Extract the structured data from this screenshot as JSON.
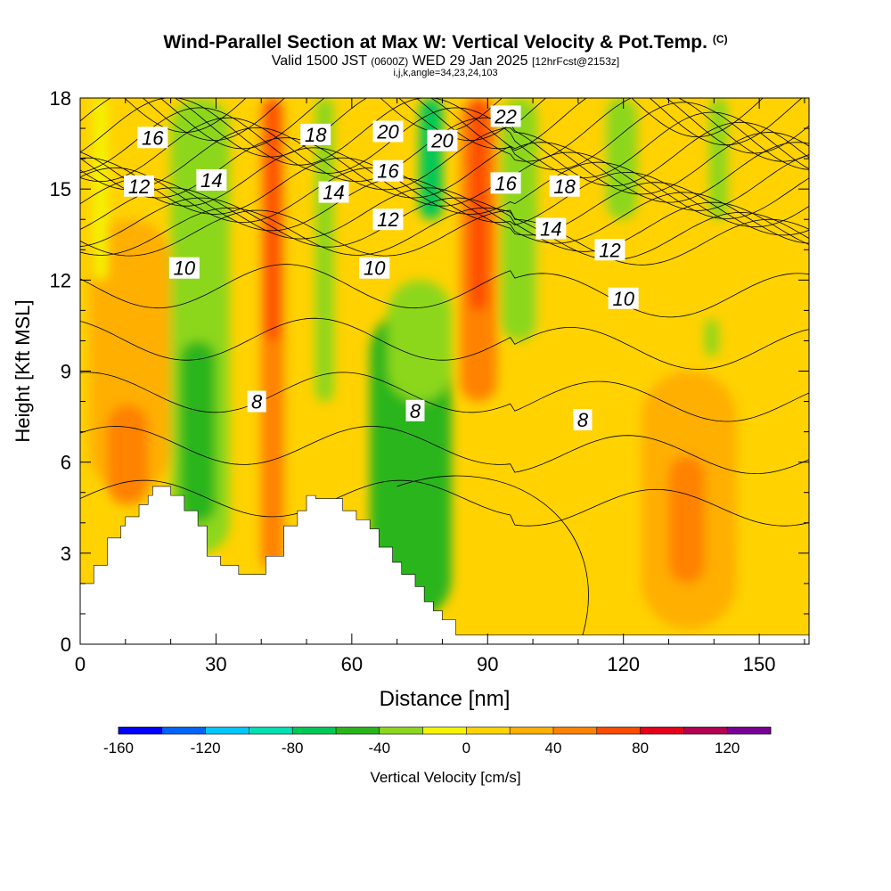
{
  "header": {
    "title": "Wind-Parallel Section at Max W: Vertical Velocity & Pot.Temp.",
    "title_tag": "(C)",
    "subtitle_a": "Valid 1500 JST",
    "subtitle_b": "(0600Z)",
    "subtitle_c": "WED 29 Jan 2025",
    "subtitle_d": "[12hrFcst@2153z]",
    "params": "i,j,k,angle=34,23,24,103"
  },
  "chart_data": {
    "type": "heatmap",
    "xlabel": "Distance [nm]",
    "ylabel": "Height [Kft MSL]",
    "xlim": [
      0,
      161
    ],
    "ylim": [
      0,
      18
    ],
    "xticks": [
      0,
      30,
      60,
      90,
      120,
      150
    ],
    "yticks": [
      0,
      3,
      6,
      9,
      12,
      15,
      18
    ],
    "terrain_top_kft": [
      [
        0,
        2
      ],
      [
        3,
        2
      ],
      [
        3,
        2.6
      ],
      [
        6,
        2.6
      ],
      [
        6,
        3.5
      ],
      [
        9,
        3.5
      ],
      [
        9,
        3.9
      ],
      [
        10,
        3.9
      ],
      [
        10,
        4.2
      ],
      [
        13,
        4.2
      ],
      [
        13,
        4.6
      ],
      [
        15,
        4.6
      ],
      [
        15,
        4.9
      ],
      [
        16,
        4.9
      ],
      [
        16,
        5.2
      ],
      [
        20,
        5.2
      ],
      [
        20,
        4.9
      ],
      [
        23,
        4.9
      ],
      [
        23,
        4.4
      ],
      [
        26,
        4.4
      ],
      [
        26,
        3.9
      ],
      [
        28,
        3.9
      ],
      [
        28,
        2.9
      ],
      [
        31,
        2.9
      ],
      [
        31,
        2.6
      ],
      [
        35,
        2.6
      ],
      [
        35,
        2.3
      ],
      [
        41,
        2.3
      ],
      [
        41,
        2.9
      ],
      [
        45,
        2.9
      ],
      [
        45,
        3.9
      ],
      [
        48,
        3.9
      ],
      [
        48,
        4.4
      ],
      [
        50,
        4.4
      ],
      [
        50,
        4.9
      ],
      [
        52,
        4.9
      ],
      [
        52,
        4.8
      ],
      [
        58,
        4.8
      ],
      [
        58,
        4.4
      ],
      [
        61,
        4.4
      ],
      [
        61,
        4.1
      ],
      [
        64,
        4.1
      ],
      [
        64,
        3.8
      ],
      [
        66,
        3.8
      ],
      [
        66,
        3.2
      ],
      [
        69,
        3.2
      ],
      [
        69,
        2.7
      ],
      [
        71,
        2.7
      ],
      [
        71,
        2.3
      ],
      [
        74,
        2.3
      ],
      [
        74,
        1.9
      ],
      [
        76,
        1.9
      ],
      [
        76,
        1.4
      ],
      [
        78,
        1.4
      ],
      [
        78,
        1.1
      ],
      [
        80,
        1.1
      ],
      [
        80,
        0.8
      ],
      [
        83,
        0.8
      ],
      [
        83,
        0.3
      ],
      [
        161,
        0.3
      ]
    ],
    "vertical_velocity_regions": [
      {
        "x": [
          0,
          4
        ],
        "y": [
          0,
          18
        ],
        "value": 10
      },
      {
        "x": [
          2,
          20
        ],
        "y": [
          5,
          14
        ],
        "value": 30
      },
      {
        "x": [
          6,
          15
        ],
        "y": [
          4.6,
          7.9
        ],
        "value": 50
      },
      {
        "x": [
          3,
          6
        ],
        "y": [
          12,
          18
        ],
        "value": -20
      },
      {
        "x": [
          20,
          33
        ],
        "y": [
          3,
          18
        ],
        "value": -40
      },
      {
        "x": [
          22,
          30
        ],
        "y": [
          4,
          10
        ],
        "value": -60
      },
      {
        "x": [
          40,
          45
        ],
        "y": [
          2.5,
          18
        ],
        "value": 50
      },
      {
        "x": [
          41,
          44
        ],
        "y": [
          10,
          18
        ],
        "value": 70
      },
      {
        "x": [
          52,
          56
        ],
        "y": [
          8,
          18
        ],
        "value": -40
      },
      {
        "x": [
          64,
          82
        ],
        "y": [
          0.8,
          11
        ],
        "value": -60
      },
      {
        "x": [
          68,
          82
        ],
        "y": [
          8,
          12
        ],
        "value": -40
      },
      {
        "x": [
          75,
          80
        ],
        "y": [
          14,
          18
        ],
        "value": -70
      },
      {
        "x": [
          84,
          92
        ],
        "y": [
          8,
          18
        ],
        "value": 50
      },
      {
        "x": [
          86,
          90
        ],
        "y": [
          11,
          18
        ],
        "value": 70
      },
      {
        "x": [
          93,
          101
        ],
        "y": [
          10,
          18
        ],
        "value": -40
      },
      {
        "x": [
          101,
          106
        ],
        "y": [
          0.3,
          14
        ],
        "value": 10
      },
      {
        "x": [
          108,
          116
        ],
        "y": [
          8,
          18
        ],
        "value": 10
      },
      {
        "x": [
          116,
          123
        ],
        "y": [
          14,
          18
        ],
        "value": -30
      },
      {
        "x": [
          124,
          145
        ],
        "y": [
          0.5,
          9
        ],
        "value": 30
      },
      {
        "x": [
          130,
          138
        ],
        "y": [
          2,
          6.2
        ],
        "value": 50
      },
      {
        "x": [
          138,
          141
        ],
        "y": [
          9.5,
          10.7
        ],
        "value": -30
      },
      {
        "x": [
          139,
          143
        ],
        "y": [
          14,
          18
        ],
        "value": -30
      },
      {
        "x": [
          146,
          154
        ],
        "y": [
          3,
          15
        ],
        "value": 10
      }
    ],
    "potential_temperature_labels": [
      {
        "text": "16",
        "x": 16,
        "y": 16.7
      },
      {
        "text": "12",
        "x": 13,
        "y": 15.1
      },
      {
        "text": "14",
        "x": 29,
        "y": 15.3
      },
      {
        "text": "18",
        "x": 52,
        "y": 16.8
      },
      {
        "text": "20",
        "x": 68,
        "y": 16.9
      },
      {
        "text": "20",
        "x": 80,
        "y": 16.6
      },
      {
        "text": "22",
        "x": 94,
        "y": 17.4
      },
      {
        "text": "16",
        "x": 68,
        "y": 15.6
      },
      {
        "text": "14",
        "x": 56,
        "y": 14.9
      },
      {
        "text": "16",
        "x": 94,
        "y": 15.2
      },
      {
        "text": "18",
        "x": 107,
        "y": 15.1
      },
      {
        "text": "12",
        "x": 68,
        "y": 14.0
      },
      {
        "text": "14",
        "x": 104,
        "y": 13.7
      },
      {
        "text": "12",
        "x": 117,
        "y": 13.0
      },
      {
        "text": "10",
        "x": 23,
        "y": 12.4
      },
      {
        "text": "10",
        "x": 65,
        "y": 12.4
      },
      {
        "text": "10",
        "x": 120,
        "y": 11.4
      },
      {
        "text": "8",
        "x": 39,
        "y": 8.0
      },
      {
        "text": "8",
        "x": 74,
        "y": 7.7
      },
      {
        "text": "8",
        "x": 111,
        "y": 7.4
      }
    ],
    "colorbar": {
      "label": "Vertical Velocity [cm/s]",
      "bounds": [
        -160,
        140
      ],
      "step": 20,
      "tick_values": [
        -160,
        -120,
        -80,
        -40,
        0,
        40,
        80,
        120
      ],
      "colors": [
        "#0000ff",
        "#0064ff",
        "#00c8ff",
        "#00e0b4",
        "#00c858",
        "#29b51a",
        "#8cd71e",
        "#f4f400",
        "#ffd200",
        "#ffaf00",
        "#ff8200",
        "#ff4b00",
        "#e6001a",
        "#b40050",
        "#780096"
      ]
    }
  }
}
